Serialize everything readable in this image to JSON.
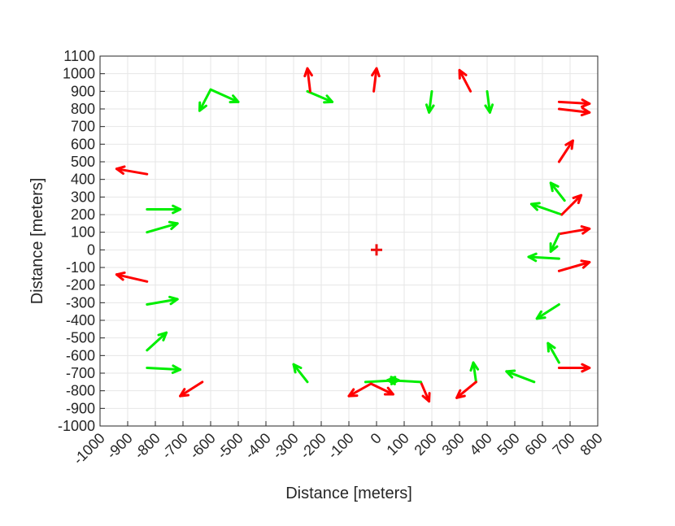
{
  "chart_data": {
    "type": "quiver",
    "xlabel": "Distance [meters]",
    "ylabel": "Distance [meters]",
    "xlim": [
      -1000,
      800
    ],
    "ylim": [
      -1000,
      1100
    ],
    "x_ticks": [
      -1000,
      -900,
      -800,
      -700,
      -600,
      -500,
      -400,
      -300,
      -200,
      -100,
      0,
      100,
      200,
      300,
      400,
      500,
      600,
      700,
      800
    ],
    "x_tick_labels": [
      "-1000",
      "-900",
      "-800",
      "-700",
      "-600",
      "-500",
      "-400",
      "-300",
      "-200",
      "-100",
      "0",
      "100",
      "200",
      "300",
      "400",
      "500",
      "600",
      "700",
      "800"
    ],
    "y_ticks": [
      -1000,
      -900,
      -800,
      -700,
      -600,
      -500,
      -400,
      -300,
      -200,
      -100,
      0,
      100,
      200,
      300,
      400,
      500,
      600,
      700,
      800,
      900,
      1000,
      1100
    ],
    "y_tick_labels": [
      "-1000",
      "-900",
      "-800",
      "-700",
      "-600",
      "-500",
      "-400",
      "-300",
      "-200",
      "-100",
      "0",
      "100",
      "200",
      "300",
      "400",
      "500",
      "600",
      "700",
      "800",
      "900",
      "1000",
      "1100"
    ],
    "grid": true,
    "colors": {
      "red": "#ff0000",
      "green": "#00ee00",
      "center": "#ee1111",
      "grid": "#e6e6e6",
      "axis": "#262626"
    },
    "center_marker": {
      "x": 0,
      "y": 0,
      "symbol": "+"
    },
    "arrows": [
      {
        "color": "green",
        "x1": -600,
        "y1": 910,
        "x2": -500,
        "y2": 840
      },
      {
        "color": "green",
        "x1": -600,
        "y1": 910,
        "x2": -640,
        "y2": 790
      },
      {
        "color": "green",
        "x1": -250,
        "y1": 900,
        "x2": -160,
        "y2": 840
      },
      {
        "color": "red",
        "x1": -240,
        "y1": 900,
        "x2": -250,
        "y2": 1030
      },
      {
        "color": "red",
        "x1": -10,
        "y1": 900,
        "x2": 0,
        "y2": 1030
      },
      {
        "color": "green",
        "x1": 200,
        "y1": 900,
        "x2": 190,
        "y2": 780
      },
      {
        "color": "red",
        "x1": 340,
        "y1": 900,
        "x2": 300,
        "y2": 1020
      },
      {
        "color": "green",
        "x1": 400,
        "y1": 900,
        "x2": 410,
        "y2": 780
      },
      {
        "color": "red",
        "x1": 660,
        "y1": 840,
        "x2": 770,
        "y2": 830
      },
      {
        "color": "red",
        "x1": 660,
        "y1": 800,
        "x2": 770,
        "y2": 780
      },
      {
        "color": "red",
        "x1": 660,
        "y1": 500,
        "x2": 710,
        "y2": 620
      },
      {
        "color": "green",
        "x1": 680,
        "y1": 280,
        "x2": 630,
        "y2": 380
      },
      {
        "color": "green",
        "x1": 670,
        "y1": 200,
        "x2": 560,
        "y2": 260
      },
      {
        "color": "red",
        "x1": 670,
        "y1": 200,
        "x2": 740,
        "y2": 310
      },
      {
        "color": "red",
        "x1": 660,
        "y1": 90,
        "x2": 770,
        "y2": 120
      },
      {
        "color": "green",
        "x1": 660,
        "y1": 90,
        "x2": 630,
        "y2": -10
      },
      {
        "color": "green",
        "x1": 660,
        "y1": -50,
        "x2": 550,
        "y2": -40
      },
      {
        "color": "red",
        "x1": 660,
        "y1": -120,
        "x2": 770,
        "y2": -70
      },
      {
        "color": "green",
        "x1": 660,
        "y1": -310,
        "x2": 580,
        "y2": -390
      },
      {
        "color": "green",
        "x1": 660,
        "y1": -640,
        "x2": 620,
        "y2": -530
      },
      {
        "color": "red",
        "x1": 660,
        "y1": -670,
        "x2": 770,
        "y2": -670
      },
      {
        "color": "green",
        "x1": 570,
        "y1": -750,
        "x2": 470,
        "y2": -690
      },
      {
        "color": "green",
        "x1": 360,
        "y1": -750,
        "x2": 350,
        "y2": -640
      },
      {
        "color": "red",
        "x1": 360,
        "y1": -750,
        "x2": 290,
        "y2": -840
      },
      {
        "color": "red",
        "x1": 160,
        "y1": -750,
        "x2": 190,
        "y2": -860
      },
      {
        "color": "green",
        "x1": 160,
        "y1": -750,
        "x2": 40,
        "y2": -740
      },
      {
        "color": "green",
        "x1": -40,
        "y1": -750,
        "x2": 80,
        "y2": -740
      },
      {
        "color": "red",
        "x1": -20,
        "y1": -760,
        "x2": 60,
        "y2": -820
      },
      {
        "color": "red",
        "x1": -20,
        "y1": -760,
        "x2": -100,
        "y2": -830
      },
      {
        "color": "green",
        "x1": -250,
        "y1": -750,
        "x2": -300,
        "y2": -650
      },
      {
        "color": "red",
        "x1": -630,
        "y1": -750,
        "x2": -710,
        "y2": -830
      },
      {
        "color": "green",
        "x1": -830,
        "y1": -670,
        "x2": -710,
        "y2": -680
      },
      {
        "color": "green",
        "x1": -830,
        "y1": -570,
        "x2": -760,
        "y2": -470
      },
      {
        "color": "green",
        "x1": -830,
        "y1": -310,
        "x2": -720,
        "y2": -280
      },
      {
        "color": "red",
        "x1": -830,
        "y1": -180,
        "x2": -940,
        "y2": -140
      },
      {
        "color": "green",
        "x1": -830,
        "y1": 100,
        "x2": -720,
        "y2": 150
      },
      {
        "color": "green",
        "x1": -830,
        "y1": 230,
        "x2": -710,
        "y2": 230
      },
      {
        "color": "red",
        "x1": -830,
        "y1": 430,
        "x2": -940,
        "y2": 460
      }
    ]
  }
}
